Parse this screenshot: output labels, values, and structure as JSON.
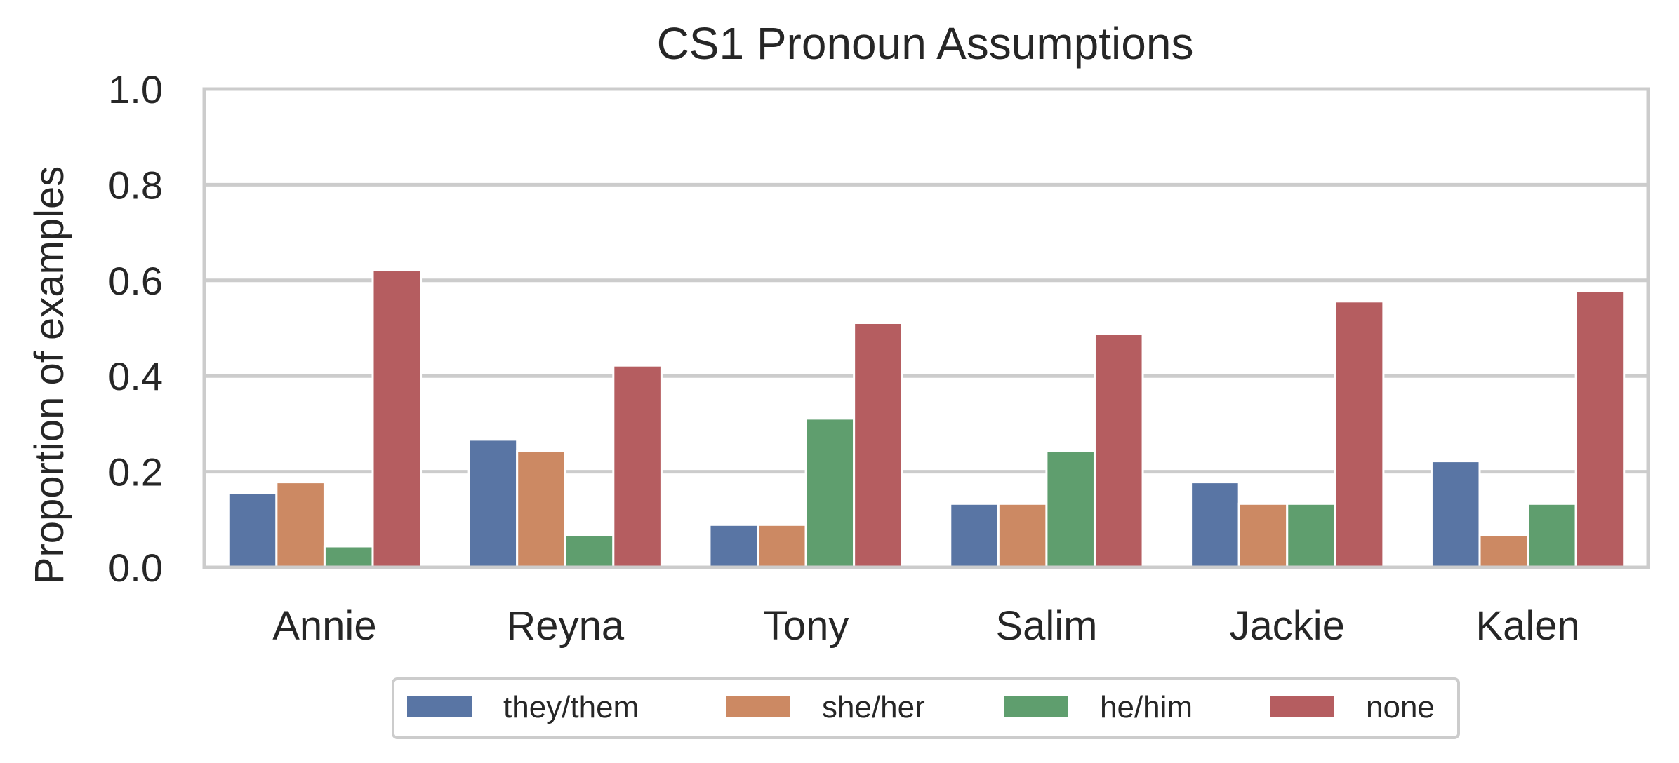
{
  "chart_data": {
    "type": "bar",
    "title": "CS1 Pronoun Assumptions",
    "xlabel": "",
    "ylabel": "Proportion of examples",
    "ylim": [
      0,
      1.0
    ],
    "yticks": [
      "0.0",
      "0.2",
      "0.4",
      "0.6",
      "0.8",
      "1.0"
    ],
    "grid": true,
    "legend_position": "bottom-center",
    "categories": [
      "Annie",
      "Reyna",
      "Tony",
      "Salim",
      "Jackie",
      "Kalen"
    ],
    "series": [
      {
        "name": "they/them",
        "color": "#5975a4",
        "values": [
          0.156,
          0.267,
          0.089,
          0.133,
          0.178,
          0.222
        ]
      },
      {
        "name": "she/her",
        "color": "#cc8963",
        "values": [
          0.178,
          0.244,
          0.089,
          0.133,
          0.133,
          0.067
        ]
      },
      {
        "name": "he/him",
        "color": "#5f9e6e",
        "values": [
          0.044,
          0.067,
          0.311,
          0.244,
          0.133,
          0.133
        ]
      },
      {
        "name": "none",
        "color": "#b55d60",
        "values": [
          0.622,
          0.422,
          0.511,
          0.489,
          0.556,
          0.578
        ]
      }
    ]
  }
}
